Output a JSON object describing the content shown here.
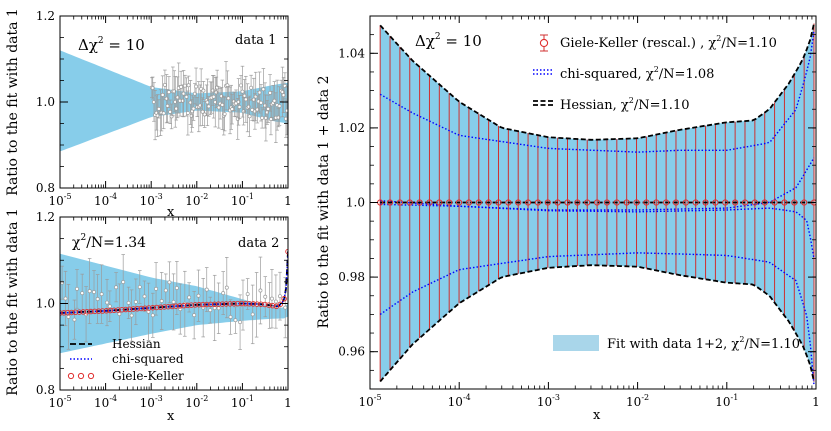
{
  "chart_data": [
    {
      "type": "area",
      "panel": "top-left",
      "xscale": "log",
      "xlim": [
        1e-05,
        1
      ],
      "ylim": [
        0.8,
        1.2
      ],
      "xlabel": "x",
      "ylabel": "Ratio to the fit with data 1",
      "x_ticks": [
        "10-5",
        "10-4",
        "10-3",
        "10-2",
        "10-1",
        "1"
      ],
      "y_ticks": [
        "0.8",
        "1.0",
        "1.2"
      ],
      "annotations": {
        "delta_prefix": "Δχ",
        "delta_value": "= 10",
        "dataset": "data 1"
      },
      "band": {
        "x": [
          1e-05,
          0.001,
          0.01,
          0.1,
          0.5,
          1
        ],
        "upper": [
          1.12,
          1.035,
          1.02,
          1.025,
          1.04,
          1.045
        ],
        "lower": [
          0.885,
          0.965,
          0.98,
          0.975,
          0.955,
          0.95
        ]
      },
      "points": {
        "x_range": [
          0.001,
          1
        ],
        "count": 110,
        "y_center": 1.0,
        "y_spread": 0.04,
        "err_range": [
          0.02,
          0.06
        ]
      },
      "colors": {
        "band": "#87cdea",
        "points": "#9b9b9b"
      }
    },
    {
      "type": "line",
      "panel": "bottom-left",
      "xscale": "log",
      "xlim": [
        1e-05,
        1
      ],
      "ylim": [
        0.8,
        1.2
      ],
      "xlabel": "x",
      "ylabel": "Ratio to the fit with data 1",
      "x_ticks": [
        "10-5",
        "10-4",
        "10-3",
        "10-2",
        "10-1",
        "1"
      ],
      "y_ticks": [
        "0.8",
        "1.0",
        "1.2"
      ],
      "annotations": {
        "chi_prefix": "χ",
        "chi_value": "/N=1.34",
        "dataset": "data 2"
      },
      "band": {
        "x": [
          1e-05,
          0.001,
          0.01,
          0.1,
          0.5,
          0.8,
          1
        ],
        "upper": [
          1.115,
          1.06,
          1.04,
          1.01,
          0.99,
          0.99,
          1.0
        ],
        "lower": [
          0.885,
          0.93,
          0.95,
          0.96,
          0.965,
          0.965,
          0.97
        ]
      },
      "series": [
        {
          "name": "Hessian",
          "x": [
            1e-05,
            0.0001,
            0.001,
            0.01,
            0.1,
            0.3,
            0.6,
            0.8,
            0.9,
            0.95,
            1
          ],
          "y": [
            0.978,
            0.983,
            0.99,
            0.997,
            1.0,
            0.998,
            0.993,
            1.005,
            1.03,
            1.065,
            1.12
          ]
        },
        {
          "name": "chi-squared",
          "x": [
            1e-05,
            0.0001,
            0.001,
            0.01,
            0.1,
            0.3,
            0.6,
            0.8,
            0.9,
            0.95,
            1
          ],
          "y": [
            0.978,
            0.983,
            0.99,
            0.997,
            1.0,
            0.998,
            0.993,
            1.005,
            1.03,
            1.065,
            1.12
          ]
        },
        {
          "name": "Giele-Keller",
          "x_range": [
            1e-05,
            1
          ],
          "count": 60
        }
      ],
      "points": {
        "x_range": [
          1e-05,
          1
        ],
        "count": 55,
        "y_center": 1.0,
        "y_spread": 0.05,
        "err_range": [
          0.03,
          0.08
        ]
      },
      "legend": [
        "Hessian",
        "chi-squared",
        "Giele-Keller"
      ],
      "legend_position": "bottom-left",
      "colors": {
        "band": "#87cdea",
        "points": "#9b9b9b",
        "hessian": "#000000",
        "chi": "#0000ff",
        "gk": "#e03030"
      }
    },
    {
      "type": "line",
      "panel": "right",
      "xscale": "log",
      "xlim": [
        1e-05,
        1
      ],
      "ylim": [
        0.95,
        1.05
      ],
      "xlabel": "x",
      "ylabel": "Ratio to the fit with data 1 + data 2",
      "x_ticks": [
        "10-5",
        "10-4",
        "10-3",
        "10-2",
        "10-1",
        "1"
      ],
      "y_ticks": [
        "0.96",
        "0.98",
        "1.0",
        "1.02",
        "1.04"
      ],
      "annotations": {
        "delta_prefix": "Δχ",
        "delta_value": "= 10"
      },
      "band": {
        "x": [
          1.3e-05,
          3e-05,
          0.0001,
          0.0003,
          0.001,
          0.003,
          0.01,
          0.03,
          0.1,
          0.2,
          0.3,
          0.5,
          0.7,
          0.85,
          0.95
        ],
        "upper": [
          1.0475,
          1.038,
          1.027,
          1.02,
          1.0175,
          1.0168,
          1.0172,
          1.0195,
          1.0215,
          1.022,
          1.025,
          1.032,
          1.038,
          1.043,
          1.048
        ],
        "lower": [
          0.952,
          0.962,
          0.973,
          0.98,
          0.9825,
          0.9832,
          0.9828,
          0.9805,
          0.9785,
          0.978,
          0.975,
          0.968,
          0.962,
          0.957,
          0.952
        ]
      },
      "series": [
        {
          "name": "Giele-Keller (rescal.) , χ²/N=1.10",
          "x_range": [
            1.3e-05,
            0.95
          ],
          "count": 45,
          "y": 1.0
        },
        {
          "name": "chi-squared, χ²/N=1.08",
          "curves": [
            {
              "x": [
                1.3e-05,
                3e-05,
                0.0001,
                0.001,
                0.01,
                0.03,
                0.1,
                0.3,
                0.6,
                0.85,
                0.95
              ],
              "y": [
                1.029,
                1.024,
                1.018,
                1.0145,
                1.0135,
                1.014,
                1.014,
                1.016,
                1.025,
                1.038,
                1.046
              ]
            },
            {
              "x": [
                1.3e-05,
                3e-05,
                0.0001,
                0.001,
                0.01,
                0.03,
                0.1,
                0.3,
                0.6,
                0.8,
                0.9,
                0.95
              ],
              "y": [
                0.97,
                0.976,
                0.982,
                0.9855,
                0.9865,
                0.9862,
                0.9858,
                0.984,
                0.979,
                0.969,
                0.958,
                0.951
              ]
            },
            {
              "x": [
                1.3e-05,
                0.0001,
                0.001,
                0.01,
                0.1,
                0.3,
                0.6,
                0.8,
                0.95
              ],
              "y": [
                1.0005,
                0.999,
                0.998,
                0.998,
                0.9985,
                1.0,
                1.004,
                1.009,
                1.012
              ]
            },
            {
              "x": [
                1.3e-05,
                0.0001,
                0.001,
                0.01,
                0.1,
                0.3,
                0.6,
                0.8,
                0.95
              ],
              "y": [
                0.9995,
                0.999,
                0.9978,
                0.9975,
                0.998,
                0.9985,
                0.9975,
                0.995,
                0.985
              ]
            }
          ]
        },
        {
          "name": "Hessian, χ²/N=1.10",
          "center_y": 1.0
        }
      ],
      "legend": [
        "Giele-Keller (rescal.) , χ²/N=1.10",
        "chi-squared, χ²/N=1.08",
        "Hessian, χ²/N=1.10"
      ],
      "band_label": "Fit with data 1+2, χ²/N=1.10",
      "legend_position": "top-right",
      "colors": {
        "band": "#87cdea",
        "vlines": "#d03030",
        "hessian": "#000000",
        "chi": "#0000ff",
        "gk": "#e03030"
      }
    }
  ],
  "labels": {
    "tl_delta_prefix": "Δχ",
    "tl_delta_sup": "2",
    "tl_delta_value": " = 10",
    "tl_dataset": "data 1",
    "tl_ylabel": "Ratio to the fit with data 1",
    "tl_xlabel": "x",
    "bl_chi_prefix": "χ",
    "bl_chi_sup": "2",
    "bl_chi_value": "/N=1.34",
    "bl_dataset": "data 2",
    "bl_ylabel": "Ratio to the fit with data 1",
    "bl_xlabel": "x",
    "bl_leg_hessian": "Hessian",
    "bl_leg_chi": "chi-squared",
    "bl_leg_gk": "Giele-Keller",
    "r_delta_prefix": "Δχ",
    "r_delta_sup": "2",
    "r_delta_value": " = 10",
    "r_ylabel": "Ratio to the fit with data 1 + data 2",
    "r_xlabel": "x",
    "r_leg_gk_a": "Giele-Keller (rescal.) , χ",
    "r_leg_gk_sup": "2",
    "r_leg_gk_b": "/N=1.10",
    "r_leg_chi_a": "chi-squared, χ",
    "r_leg_chi_sup": "2",
    "r_leg_chi_b": "/N=1.08",
    "r_leg_hes_a": "Hessian, χ",
    "r_leg_hes_sup": "2",
    "r_leg_hes_b": "/N=1.10",
    "r_band_a": "Fit with data 1+2, χ",
    "r_band_sup": "2",
    "r_band_b": "/N=1.10"
  }
}
